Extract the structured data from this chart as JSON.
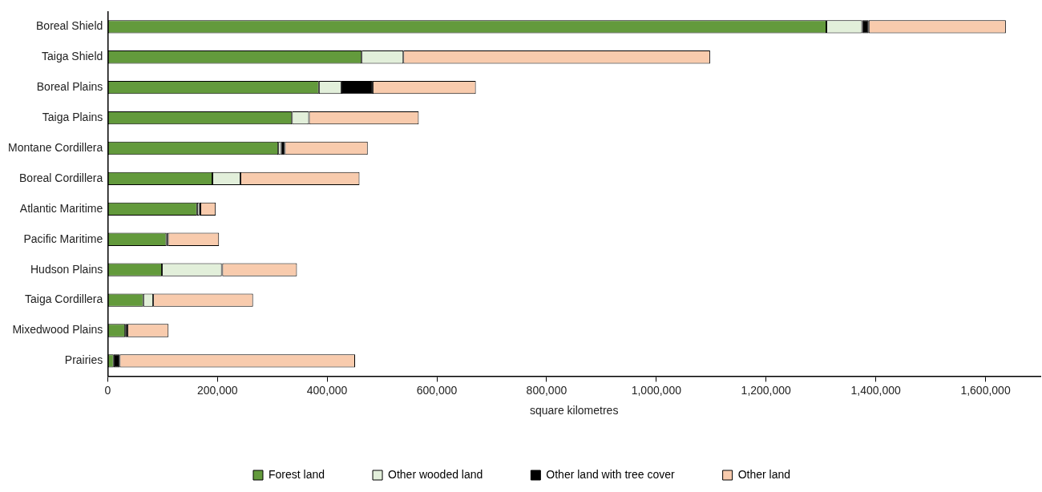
{
  "chart_data": {
    "type": "bar",
    "orientation": "horizontal",
    "stacked": true,
    "xlabel": "square kilometres",
    "categories": [
      "Boreal Shield",
      "Taiga Shield",
      "Boreal Plains",
      "Taiga Plains",
      "Montane Cordillera",
      "Boreal Cordillera",
      "Atlantic Maritime",
      "Pacific Maritime",
      "Hudson Plains",
      "Taiga Cordillera",
      "Mixedwood Plains",
      "Prairies"
    ],
    "series": [
      {
        "name": "Forest land",
        "color": "#639a3c",
        "values": [
          1310000,
          463000,
          385000,
          336000,
          311000,
          191000,
          163000,
          107000,
          99000,
          65000,
          32000,
          11000
        ]
      },
      {
        "name": "Other wooded land",
        "color": "#e2efda",
        "values": [
          65000,
          76000,
          41000,
          31000,
          5000,
          51000,
          4000,
          0,
          109000,
          18000,
          0,
          0
        ]
      },
      {
        "name": "Other land with tree cover",
        "color": "#000000",
        "values": [
          12000,
          0,
          57000,
          0,
          7000,
          0,
          2000,
          3000,
          1000,
          0,
          4000,
          11000
        ]
      },
      {
        "name": "Other land",
        "color": "#f8cbad",
        "values": [
          250000,
          559000,
          188000,
          200000,
          151000,
          217000,
          28000,
          93000,
          136000,
          182000,
          75000,
          429000
        ]
      }
    ],
    "xlim": [
      0,
      1700000
    ],
    "xticks": [
      0,
      {
        "value": 200000,
        "label": "200,000"
      },
      {
        "value": 400000,
        "label": "400,000"
      },
      {
        "value": 600000,
        "label": "600,000"
      },
      {
        "value": 800000,
        "label": "800,000"
      },
      {
        "value": 1000000,
        "label": "1,000,000"
      },
      {
        "value": 1200000,
        "label": "1,200,000"
      },
      {
        "value": 1400000,
        "label": "1,400,000"
      },
      {
        "value": 1600000,
        "label": "1,600,000"
      }
    ],
    "grid": false,
    "legend": "bottom"
  }
}
